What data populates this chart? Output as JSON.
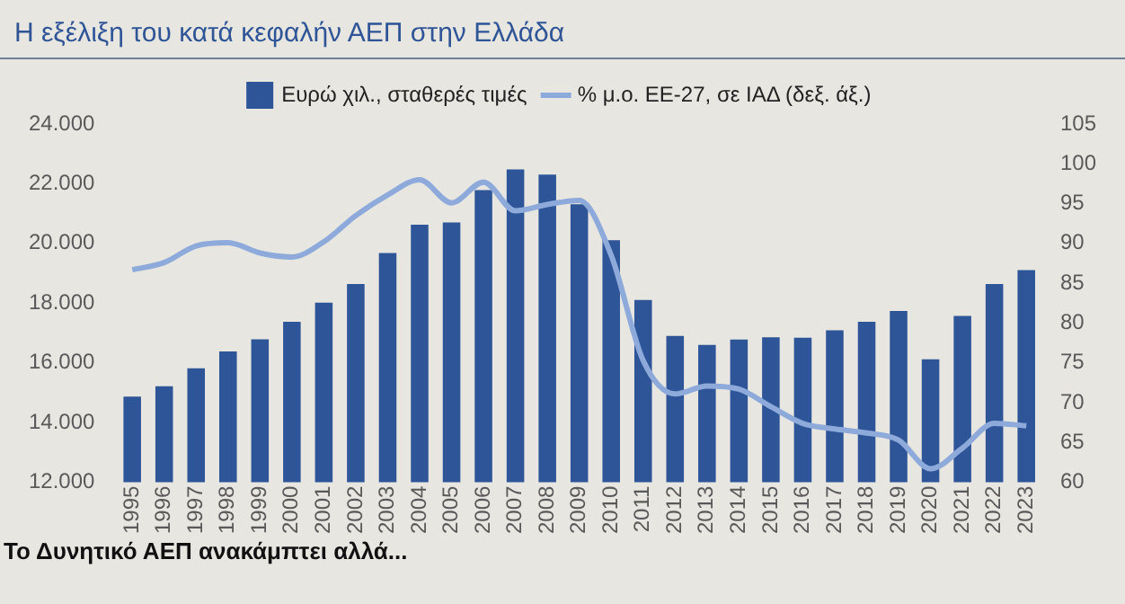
{
  "chart_data": {
    "type": "bar",
    "title": "Η εξέλιξη του κατά κεφαλήν ΑΕΠ στην Ελλάδα",
    "categories": [
      "1995",
      "1996",
      "1997",
      "1998",
      "1999",
      "2000",
      "2001",
      "2002",
      "2003",
      "2004",
      "2005",
      "2006",
      "2007",
      "2008",
      "2009",
      "2010",
      "2011",
      "2012",
      "2013",
      "2014",
      "2015",
      "2016",
      "2017",
      "2018",
      "2019",
      "2020",
      "2021",
      "2022",
      "2023"
    ],
    "series": [
      {
        "name": "Ευρώ χιλ., σταθερές τιμές",
        "color": "#2e5597",
        "values": [
          14870,
          15220,
          15820,
          16380,
          16790,
          17380,
          18020,
          18640,
          19680,
          20630,
          20700,
          21790,
          22480,
          22310,
          21310,
          20110,
          18110,
          16900,
          16600,
          16780,
          16860,
          16840,
          17090,
          17380,
          17740,
          16120,
          17570,
          18640,
          19110
        ]
      },
      {
        "name": "% μ.ο. ΕΕ-27, σε ΙΑΔ (δεξ. άξ.)",
        "type": "line",
        "axis": "y2",
        "color": "#8eaadb",
        "values": [
          86.7,
          87.6,
          89.7,
          90.1,
          88.8,
          88.3,
          90.2,
          93.5,
          96.1,
          98.0,
          95.1,
          97.7,
          94.1,
          94.9,
          95.4,
          88.5,
          75.3,
          71.1,
          72.1,
          71.7,
          69.5,
          67.4,
          66.7,
          66.2,
          65.3,
          61.7,
          64.3,
          67.4,
          67.1
        ]
      }
    ],
    "ylim": [
      12000,
      24000
    ],
    "yticks": [
      {
        "value": 12000,
        "label": "12.000"
      },
      {
        "value": 14000,
        "label": "14.000"
      },
      {
        "value": 16000,
        "label": "16.000"
      },
      {
        "value": 18000,
        "label": "18.000"
      },
      {
        "value": 20000,
        "label": "20.000"
      },
      {
        "value": 22000,
        "label": "22.000"
      },
      {
        "value": 24000,
        "label": "24.000"
      }
    ],
    "y2lim": [
      60,
      105
    ],
    "y2ticks": [
      60,
      65,
      70,
      75,
      80,
      85,
      90,
      95,
      100,
      105
    ],
    "grid": false,
    "legend": "top",
    "line_style": "solid",
    "marker": "none",
    "annotations": [
      "Το Δυνητικό ΑΕΠ ανακάμπτει αλλά..."
    ]
  }
}
